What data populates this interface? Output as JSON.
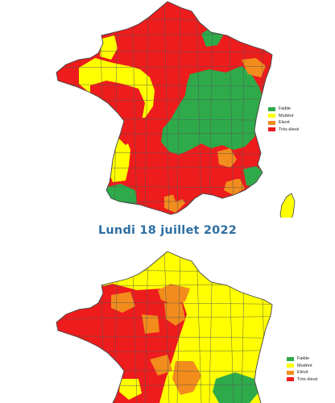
{
  "heading": {
    "date": "Lundi 18 juillet 2022",
    "color": "#2e6fa3"
  },
  "legend": {
    "items": [
      {
        "label": "Faible",
        "color": "#2eaa4a"
      },
      {
        "label": "Modéré",
        "color": "#ffff00"
      },
      {
        "label": "Elevé",
        "color": "#f28c1c"
      },
      {
        "label": "Très élevé",
        "color": "#ee1c1c"
      }
    ]
  },
  "map_colors": {
    "outline": "#555555",
    "background": "#ffffff"
  }
}
